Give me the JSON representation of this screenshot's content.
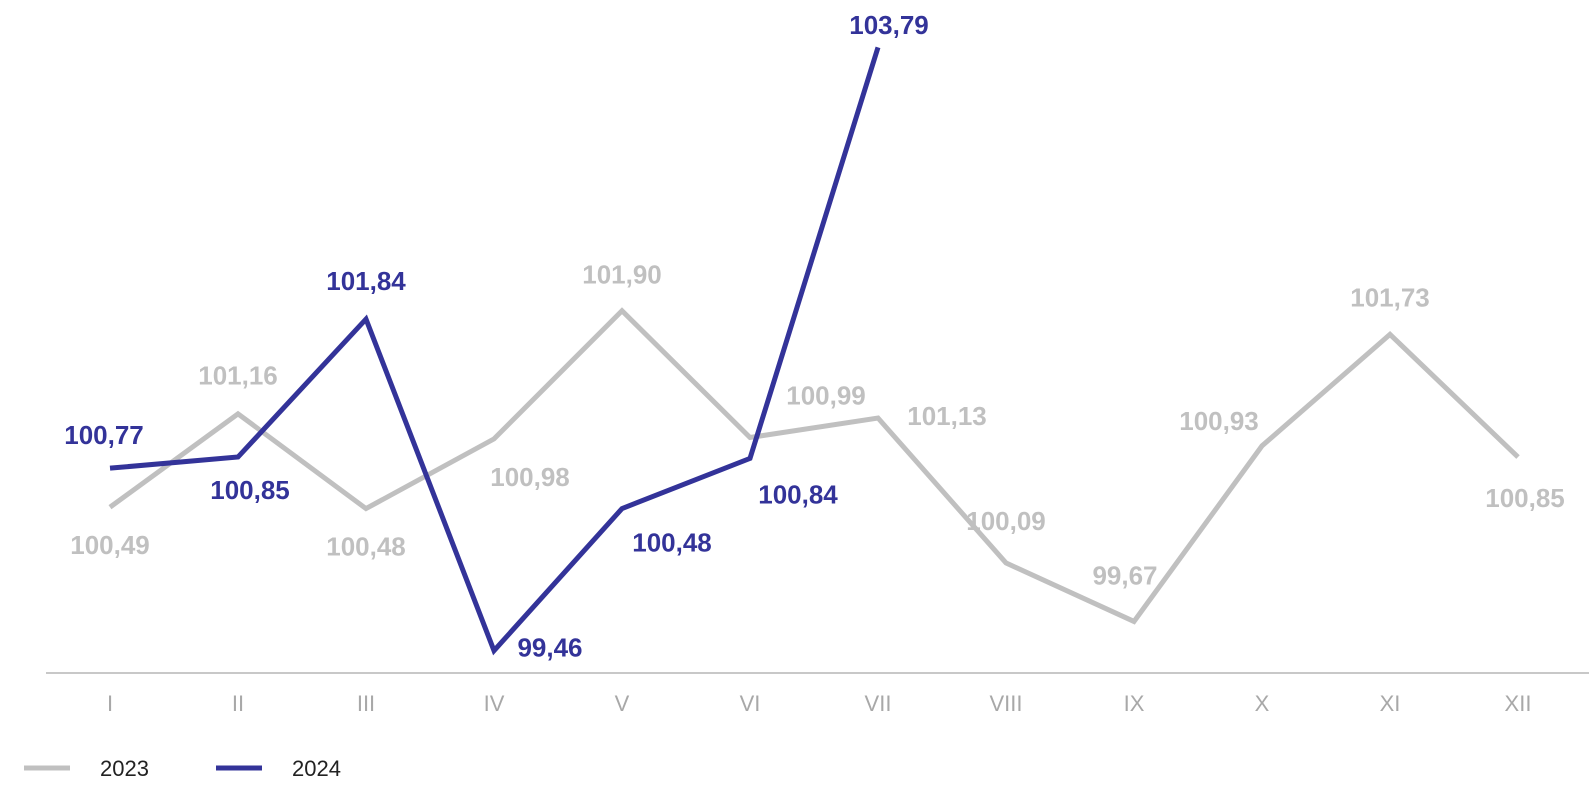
{
  "chart_data": {
    "type": "line",
    "categories": [
      "I",
      "II",
      "III",
      "IV",
      "V",
      "VI",
      "VII",
      "VIII",
      "IX",
      "X",
      "XI",
      "XII"
    ],
    "series": [
      {
        "name": "2023",
        "color": "#c0c0c0",
        "values": [
          100.49,
          101.16,
          100.48,
          100.98,
          101.9,
          100.99,
          101.13,
          100.09,
          99.67,
          100.93,
          101.73,
          100.85
        ],
        "value_labels": [
          "100,49",
          "101,16",
          "100,48",
          "100,98",
          "101,90",
          "100,99",
          "101,13",
          "100,09",
          "99,67",
          "100,93",
          "101,73",
          "100,85"
        ]
      },
      {
        "name": "2024",
        "color": "#333399",
        "values": [
          100.77,
          100.85,
          101.84,
          99.46,
          100.48,
          100.84,
          103.79,
          null,
          null,
          null,
          null,
          null
        ],
        "value_labels": [
          "100,77",
          "100,85",
          "101,84",
          "99,46",
          "100,48",
          "100,84",
          "103,79",
          null,
          null,
          null,
          null,
          null
        ]
      }
    ],
    "ylim": [
      99.3,
      104.13
    ],
    "legend": "bottom-left"
  }
}
